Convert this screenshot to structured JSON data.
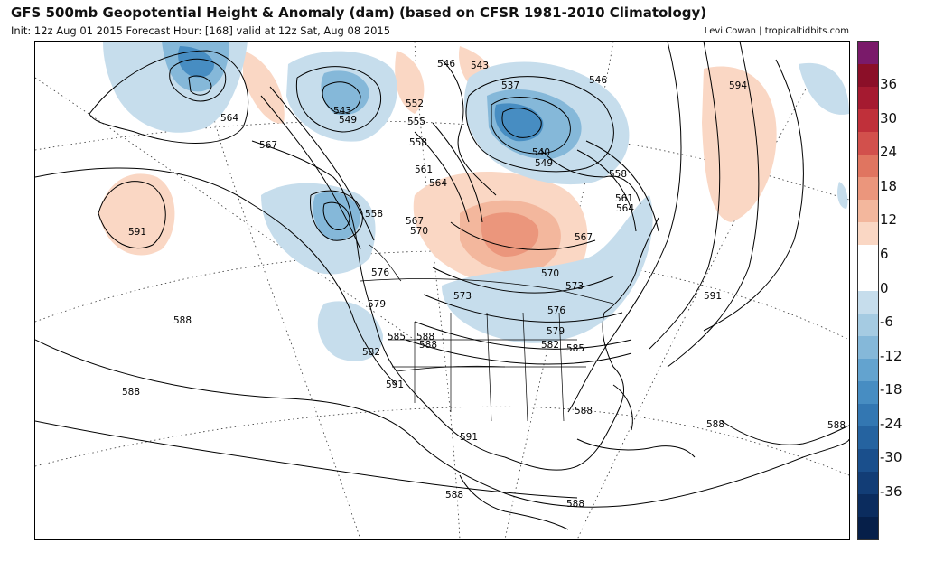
{
  "header": {
    "title": "GFS 500mb Geopotential Height & Anomaly (dam) (based on CFSR 1981-2010 Climatology)",
    "subtitle": "Init: 12z Aug 01 2015   Forecast Hour: [168]   valid at 12z Sat, Aug 08 2015",
    "credit": "Levi Cowan | tropicaltidbits.com"
  },
  "colorbar": {
    "ticks": [
      "36",
      "30",
      "24",
      "18",
      "12",
      "6",
      "0",
      "-6",
      "-12",
      "-18",
      "-24",
      "-30",
      "-36"
    ],
    "colors": [
      "#7a1a6a",
      "#8b0f28",
      "#a51a30",
      "#c0303a",
      "#d2504c",
      "#e07560",
      "#eb967c",
      "#f3b79d",
      "#fad7c4",
      "#ffffff",
      "#ffffff",
      "#c6ddec",
      "#a5cbe2",
      "#85b8d9",
      "#63a3cf",
      "#478dc2",
      "#3377b2",
      "#2563a0",
      "#1a4f8c",
      "#123d76",
      "#0b2c5e",
      "#061f49"
    ]
  },
  "contour_labels": [
    "564",
    "567",
    "543",
    "549",
    "546",
    "543",
    "537",
    "546",
    "594",
    "552",
    "555",
    "558",
    "540",
    "549",
    "558",
    "561",
    "564",
    "561",
    "564",
    "558",
    "567",
    "570",
    "567",
    "576",
    "570",
    "573",
    "573",
    "579",
    "576",
    "585",
    "588",
    "579",
    "582",
    "582",
    "585",
    "591",
    "588",
    "591",
    "591",
    "588",
    "588",
    "588",
    "588",
    "591",
    "588",
    "588",
    "588"
  ],
  "icons": {
    "map": "map-canvas",
    "colorbar": "legend-colorbar"
  }
}
